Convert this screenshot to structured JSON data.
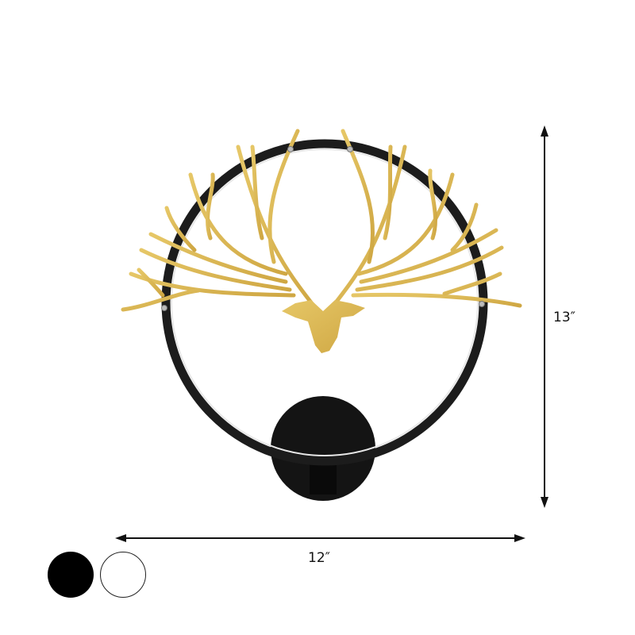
{
  "product": {
    "colors": {
      "gold": "#d9b44f",
      "ring": "#1a1a1a",
      "background": "#ffffff"
    }
  },
  "dimensions": {
    "height_label": "13″",
    "width_label": "12″"
  },
  "color_options": [
    {
      "name": "black",
      "hex": "#000000"
    },
    {
      "name": "white",
      "hex": "#ffffff"
    }
  ]
}
